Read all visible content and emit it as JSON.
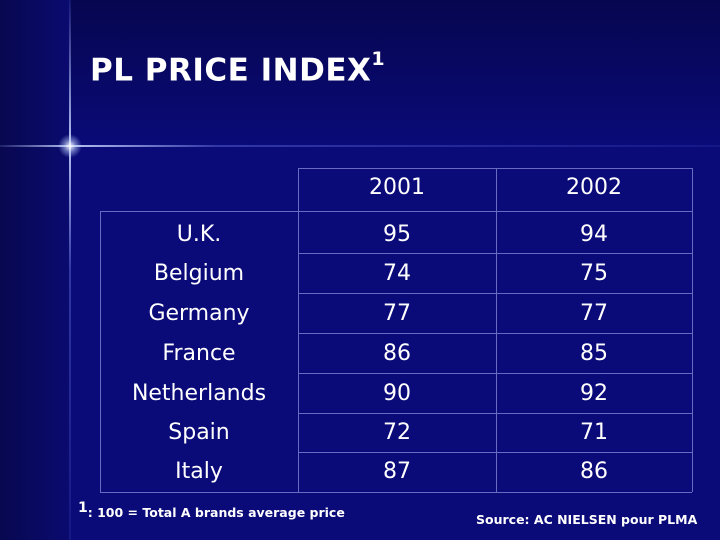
{
  "slide": {
    "title": "PL PRICE INDEX",
    "title_superscript": "1",
    "footnote_mark": "1",
    "footnote_text": ": 100 = Total A brands average price",
    "source": "Source: AC NIELSEN pour  PLMA"
  },
  "table": {
    "columns": [
      "2001",
      "2002"
    ],
    "rows": [
      {
        "country": "U.K.",
        "v2001": "95",
        "v2002": "94"
      },
      {
        "country": "Belgium",
        "v2001": "74",
        "v2002": "75"
      },
      {
        "country": "Germany",
        "v2001": "77",
        "v2002": "77"
      },
      {
        "country": "France",
        "v2001": "86",
        "v2002": "85"
      },
      {
        "country": "Netherlands",
        "v2001": "90",
        "v2002": "92"
      },
      {
        "country": "Spain",
        "v2001": "72",
        "v2002": "71"
      },
      {
        "country": "Italy",
        "v2001": "87",
        "v2002": "86"
      }
    ]
  },
  "colors": {
    "background": "#0a0a78",
    "text": "#ffffff",
    "grid_lines": "#6a6ac0"
  }
}
